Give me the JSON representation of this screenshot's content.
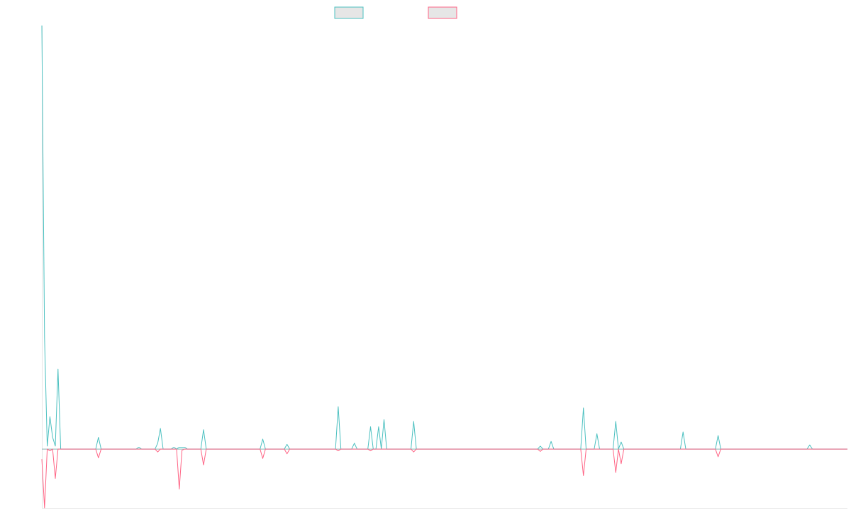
{
  "colors": {
    "series_a": "#4bc0c0",
    "series_b": "#ff6384",
    "legend_fill": "#e6e6e6",
    "axis": "#e4e4e4",
    "zero_line": "#8cb0b0"
  },
  "chart_data": {
    "type": "line",
    "title": "",
    "xlabel": "",
    "ylabel": "",
    "legend": "top-center",
    "grid": false,
    "x_count": 300,
    "ylim": [
      -1,
      7.2
    ],
    "baseline": 0,
    "series": [
      {
        "key": "series_a",
        "color": "#4bc0c0",
        "points": [
          [
            0,
            7.2
          ],
          [
            1,
            1.9
          ],
          [
            2,
            0.05
          ],
          [
            3,
            0.55
          ],
          [
            4,
            0.2
          ],
          [
            5,
            0.05
          ],
          [
            6,
            1.36
          ],
          [
            7,
            0
          ],
          [
            20,
            0
          ],
          [
            21,
            0.2
          ],
          [
            22,
            0
          ],
          [
            35,
            0
          ],
          [
            36,
            0.03
          ],
          [
            37,
            0
          ],
          [
            42,
            0
          ],
          [
            43,
            0.1
          ],
          [
            44,
            0.35
          ],
          [
            45,
            0
          ],
          [
            48,
            0
          ],
          [
            49,
            0.03
          ],
          [
            50,
            0
          ],
          [
            51,
            0.03
          ],
          [
            52,
            0.03
          ],
          [
            53,
            0.03
          ],
          [
            54,
            0
          ],
          [
            59,
            0
          ],
          [
            60,
            0.33
          ],
          [
            61,
            0
          ],
          [
            81,
            0
          ],
          [
            82,
            0.17
          ],
          [
            83,
            0
          ],
          [
            90,
            0
          ],
          [
            91,
            0.08
          ],
          [
            92,
            0
          ],
          [
            109,
            0
          ],
          [
            110,
            0.72
          ],
          [
            111,
            0
          ],
          [
            115,
            0
          ],
          [
            116,
            0.1
          ],
          [
            117,
            0
          ],
          [
            121,
            0
          ],
          [
            122,
            0.38
          ],
          [
            123,
            0
          ],
          [
            124,
            0
          ],
          [
            125,
            0.38
          ],
          [
            126,
            0
          ],
          [
            127,
            0.5
          ],
          [
            128,
            0
          ],
          [
            137,
            0
          ],
          [
            138,
            0.47
          ],
          [
            139,
            0
          ],
          [
            184,
            0
          ],
          [
            185,
            0.05
          ],
          [
            186,
            0
          ],
          [
            188,
            0
          ],
          [
            189,
            0.13
          ],
          [
            190,
            0
          ],
          [
            200,
            0
          ],
          [
            201,
            0.7
          ],
          [
            202,
            0
          ],
          [
            205,
            0
          ],
          [
            206,
            0.26
          ],
          [
            207,
            0
          ],
          [
            212,
            0
          ],
          [
            213,
            0.47
          ],
          [
            214,
            0
          ],
          [
            215,
            0.12
          ],
          [
            216,
            0
          ],
          [
            237,
            0
          ],
          [
            238,
            0.29
          ],
          [
            239,
            0
          ],
          [
            250,
            0
          ],
          [
            251,
            0.23
          ],
          [
            252,
            0
          ],
          [
            284,
            0
          ],
          [
            285,
            0.07
          ],
          [
            286,
            0
          ],
          [
            299,
            0
          ]
        ]
      },
      {
        "key": "series_b",
        "color": "#ff6384",
        "points": [
          [
            0,
            -0.17
          ],
          [
            1,
            -1
          ],
          [
            2,
            0
          ],
          [
            3,
            -0.03
          ],
          [
            4,
            0
          ],
          [
            5,
            -0.5
          ],
          [
            6,
            0
          ],
          [
            20,
            0
          ],
          [
            21,
            -0.15
          ],
          [
            22,
            0
          ],
          [
            42,
            0
          ],
          [
            43,
            -0.05
          ],
          [
            44,
            0
          ],
          [
            50,
            0
          ],
          [
            51,
            -0.68
          ],
          [
            52,
            -0.02
          ],
          [
            53,
            0
          ],
          [
            59,
            0
          ],
          [
            60,
            -0.27
          ],
          [
            61,
            0
          ],
          [
            81,
            0
          ],
          [
            82,
            -0.16
          ],
          [
            83,
            0
          ],
          [
            90,
            0
          ],
          [
            91,
            -0.08
          ],
          [
            92,
            0
          ],
          [
            109,
            0
          ],
          [
            110,
            -0.03
          ],
          [
            111,
            0
          ],
          [
            121,
            0
          ],
          [
            122,
            -0.03
          ],
          [
            123,
            0
          ],
          [
            137,
            0
          ],
          [
            138,
            -0.05
          ],
          [
            139,
            0
          ],
          [
            184,
            0
          ],
          [
            185,
            -0.04
          ],
          [
            186,
            0
          ],
          [
            200,
            0
          ],
          [
            201,
            -0.45
          ],
          [
            202,
            0
          ],
          [
            212,
            0
          ],
          [
            213,
            -0.4
          ],
          [
            214,
            0
          ],
          [
            215,
            -0.25
          ],
          [
            216,
            0
          ],
          [
            250,
            0
          ],
          [
            251,
            -0.13
          ],
          [
            252,
            0
          ],
          [
            299,
            0
          ]
        ]
      }
    ]
  }
}
